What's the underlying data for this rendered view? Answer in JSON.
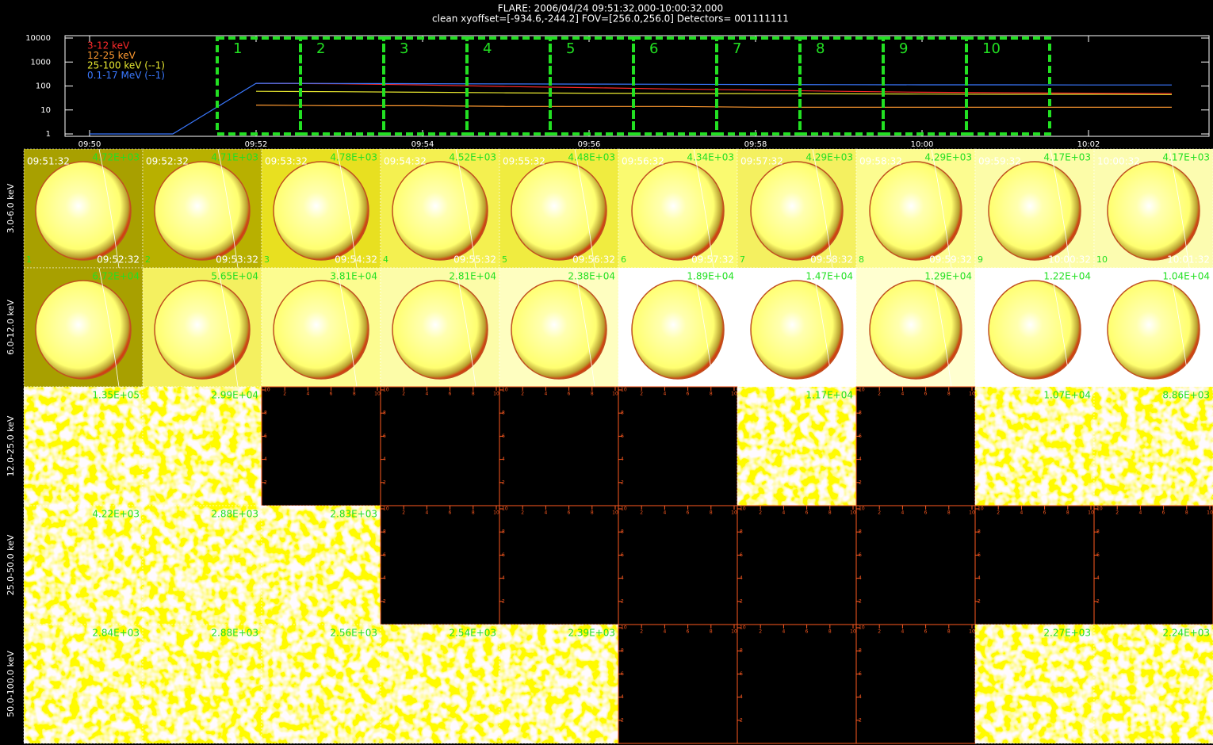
{
  "header": {
    "line1": "FLARE: 2006/04/24  09:51:32.000-10:00:32.000",
    "line2": "clean    xyoffset=[-934.6,-244.2]    FOV=[256.0,256.0]    Detectors= 001111111"
  },
  "chart_data": {
    "type": "line",
    "x": [
      "09:50",
      "09:51",
      "09:52",
      "09:53",
      "09:54",
      "09:55",
      "09:56",
      "09:57",
      "09:58",
      "09:59",
      "10:00",
      "10:01",
      "10:02",
      "10:03"
    ],
    "xticks": [
      "09:50",
      "09:52",
      "09:54",
      "09:56",
      "09:58",
      "10:00",
      "10:02"
    ],
    "ylim": [
      1,
      10000
    ],
    "yticks": [
      1,
      10,
      100,
      1000,
      10000
    ],
    "log_y": true,
    "series": [
      {
        "name": "3-12 keV",
        "color": "#ff2a2a",
        "values": [
          null,
          null,
          130,
          125,
          110,
          95,
          85,
          75,
          68,
          60,
          55,
          52,
          50,
          48
        ]
      },
      {
        "name": "12-25 keV",
        "color": "#ff9a30",
        "values": [
          null,
          null,
          16,
          15,
          15,
          14,
          14,
          14,
          13,
          13,
          13,
          13,
          13,
          13
        ]
      },
      {
        "name": "25-100 keV (--1)",
        "color": "#e8e830",
        "values": [
          null,
          null,
          60,
          58,
          55,
          52,
          50,
          49,
          48,
          47,
          46,
          45,
          45,
          44
        ]
      },
      {
        "name": "0.1-17 MeV (--1)",
        "color": "#3a78ff",
        "values": [
          1,
          1,
          130,
          128,
          125,
          122,
          120,
          118,
          116,
          114,
          112,
          112,
          110,
          110
        ]
      }
    ],
    "intervals": [
      {
        "label": "1",
        "start": "09:51:32",
        "end": "09:52:32"
      },
      {
        "label": "2",
        "start": "09:52:32",
        "end": "09:53:32"
      },
      {
        "label": "3",
        "start": "09:53:32",
        "end": "09:54:32"
      },
      {
        "label": "4",
        "start": "09:54:32",
        "end": "09:55:32"
      },
      {
        "label": "5",
        "start": "09:55:32",
        "end": "09:56:32"
      },
      {
        "label": "6",
        "start": "09:56:32",
        "end": "09:57:32"
      },
      {
        "label": "7",
        "start": "09:57:32",
        "end": "09:58:32"
      },
      {
        "label": "8",
        "start": "09:58:32",
        "end": "09:59:32"
      },
      {
        "label": "9",
        "start": "09:59:32",
        "end": "10:00:32"
      },
      {
        "label": "10",
        "start": "10:00:32",
        "end": "10:01:32"
      }
    ]
  },
  "image_grid": {
    "energy_bands": [
      "3.0-6.0 keV",
      "6.0-12.0 keV",
      "12.0-25.0 keV",
      "25.0-50.0 keV",
      "50.0-100.0 keV"
    ],
    "peaks": [
      [
        "4.72E+03",
        "4.71E+03",
        "4.78E+03",
        "4.52E+03",
        "4.48E+03",
        "4.34E+03",
        "4.29E+03",
        "4.29E+03",
        "4.17E+03",
        "4.17E+03"
      ],
      [
        "6.72E+04",
        "5.65E+04",
        "3.81E+04",
        "2.81E+04",
        "2.38E+04",
        "1.89E+04",
        "1.47E+04",
        "1.29E+04",
        "1.22E+04",
        "1.04E+04"
      ],
      [
        "1.35E+05",
        "2.99E+04",
        null,
        null,
        null,
        null,
        "1.17E+04",
        null,
        "1.07E+04",
        "8.86E+03"
      ],
      [
        "4.22E+03",
        "2.88E+03",
        "2.83E+03",
        null,
        null,
        null,
        null,
        null,
        null,
        null
      ],
      [
        "2.84E+03",
        "2.88E+03",
        "2.56E+03",
        "2.54E+03",
        "2.39E+03",
        null,
        null,
        null,
        "2.27E+03",
        "2.24E+03"
      ]
    ],
    "empty_panel_ticks": [
      2,
      4,
      6,
      8,
      10
    ]
  }
}
